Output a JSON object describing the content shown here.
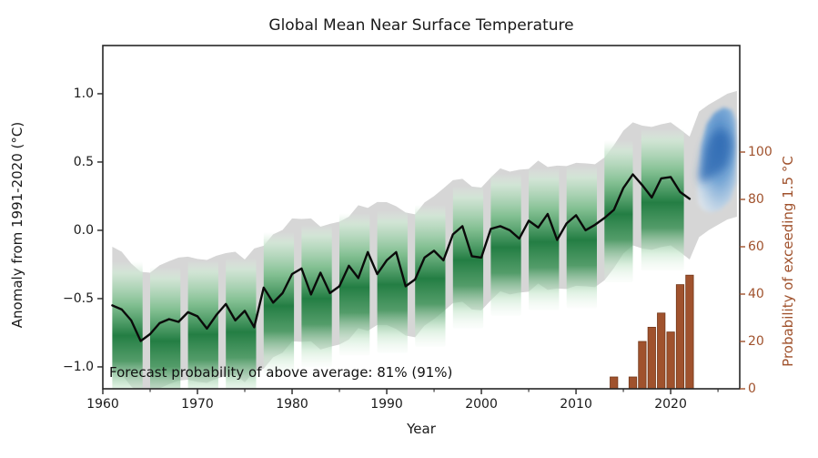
{
  "title": "Global Mean Near Surface Temperature",
  "annotation": "Forecast probability of above average: 81% (91%)",
  "axes": {
    "x": {
      "label": "Year",
      "ticks": [
        1960,
        1970,
        1980,
        1990,
        2000,
        2010,
        2020
      ],
      "tick_labels": [
        "1960",
        "1970",
        "1980",
        "1990",
        "2000",
        "2010",
        "2020"
      ],
      "minor_ticks": [
        1965,
        1975,
        1985,
        1995,
        2005,
        2015,
        2025
      ],
      "range": [
        1960,
        2027.3
      ],
      "grid": false
    },
    "y_left": {
      "label": "Anomaly from 1991-2020 (°C)",
      "ticks": [
        1.0,
        0.5,
        0.0,
        -0.5,
        -1.0
      ],
      "tick_labels": [
        "1.0",
        "0.5",
        "0.0",
        "−0.5",
        "−1.0"
      ],
      "range": [
        -1.16,
        1.353
      ],
      "color": "#1a1a1a"
    },
    "y_right": {
      "label": "Probability of exceeding 1.5 °C",
      "ticks": [
        0,
        20,
        40,
        60,
        80,
        100
      ],
      "tick_labels": [
        "0",
        "20",
        "40",
        "60",
        "80",
        "100"
      ],
      "range": [
        0,
        145
      ],
      "color": "#a0522d"
    }
  },
  "colors": {
    "observed_line": "#0a0a0a",
    "uncertainty_gray": "#d6d6d6",
    "hindcast_green_dark": "#1e7b3f",
    "hindcast_green_light": "#d9eedd",
    "forecast_blue_dark": "#2f6cb3",
    "forecast_blue_light": "#dfecf7",
    "bars_sienna": "#a0522d",
    "frame": "#262626"
  },
  "chart_data": {
    "type": "line",
    "title": "Global Mean Near Surface Temperature",
    "xlabel": "Year",
    "ylabel_left": "Anomaly from 1991-2020 (°C)",
    "ylabel_right": "Probability of exceeding 1.5 °C",
    "legend_position": "none",
    "series": [
      {
        "name": "observed annual global mean temperature anomaly",
        "axis": "left",
        "color": "#0a0a0a",
        "x": [
          1961,
          1962,
          1963,
          1964,
          1965,
          1966,
          1967,
          1968,
          1969,
          1970,
          1971,
          1972,
          1973,
          1974,
          1975,
          1976,
          1977,
          1978,
          1979,
          1980,
          1981,
          1982,
          1983,
          1984,
          1985,
          1986,
          1987,
          1988,
          1989,
          1990,
          1991,
          1992,
          1993,
          1994,
          1995,
          1996,
          1997,
          1998,
          1999,
          2000,
          2001,
          2002,
          2003,
          2004,
          2005,
          2006,
          2007,
          2008,
          2009,
          2010,
          2011,
          2012,
          2013,
          2014,
          2015,
          2016,
          2017,
          2018,
          2019,
          2020,
          2021,
          2022
        ],
        "y": [
          -0.55,
          -0.58,
          -0.66,
          -0.81,
          -0.76,
          -0.68,
          -0.65,
          -0.67,
          -0.6,
          -0.63,
          -0.72,
          -0.62,
          -0.54,
          -0.66,
          -0.59,
          -0.71,
          -0.42,
          -0.53,
          -0.46,
          -0.32,
          -0.28,
          -0.47,
          -0.31,
          -0.46,
          -0.41,
          -0.26,
          -0.35,
          -0.16,
          -0.32,
          -0.22,
          -0.16,
          -0.41,
          -0.36,
          -0.2,
          -0.15,
          -0.22,
          -0.03,
          0.03,
          -0.19,
          -0.2,
          0.01,
          0.03,
          0.0,
          -0.06,
          0.07,
          0.02,
          0.12,
          -0.07,
          0.05,
          0.11,
          0.0,
          0.04,
          0.09,
          0.15,
          0.31,
          0.41,
          0.33,
          0.24,
          0.38,
          0.39,
          0.28,
          0.23
        ]
      },
      {
        "name": "probability of exceeding 1.5 °C (bars)",
        "type": "bar",
        "axis": "right",
        "color": "#a0522d",
        "x": [
          2014,
          2016,
          2017,
          2018,
          2019,
          2020,
          2021,
          2022
        ],
        "y": [
          5,
          5,
          20,
          26,
          32,
          24,
          44,
          48
        ]
      }
    ],
    "uncertainty_band": {
      "name": "observation/hindcast uncertainty envelope",
      "color": "#d6d6d6",
      "halfwidth_upper": 0.44,
      "halfwidth_lower": 0.46
    },
    "hindcast_bands": {
      "name": "hindcast ensemble density (green shading)",
      "color_dark": "#1e7b3f",
      "color_light": "#d9eedd",
      "halfwidth_upper": 0.42,
      "halfwidth_lower": 0.62,
      "ranges": [
        [
          1961,
          1964.2
        ],
        [
          1965,
          1968.2
        ],
        [
          1969,
          1972.2
        ],
        [
          1973,
          1976.2
        ],
        [
          1977,
          1980.2
        ],
        [
          1981,
          1984.2
        ],
        [
          1985,
          1988.2
        ],
        [
          1989,
          1992.2
        ],
        [
          1993,
          1996.2
        ],
        [
          1997,
          2000.2
        ],
        [
          2001,
          2004.2
        ],
        [
          2005,
          2008.2
        ],
        [
          2009,
          2012.2
        ],
        [
          2013,
          2016.0
        ],
        [
          2016.9,
          2021.4
        ]
      ]
    },
    "forecast": {
      "name": "2023-2027 forecast ensemble density (blue shading)",
      "x": [
        2023,
        2024,
        2025,
        2026,
        2027
      ],
      "mean": [
        0.45,
        0.5,
        0.54,
        0.58,
        0.6
      ],
      "halfwidth_upper": 0.42,
      "halfwidth_lower": 0.5,
      "color_dark": "#2f6cb3",
      "color_light": "#dfecf7",
      "blob_outer": [
        [
          2022.8,
          0.3
        ],
        [
          2023.2,
          0.62
        ],
        [
          2023.8,
          0.78
        ],
        [
          2024.6,
          0.86
        ],
        [
          2025.6,
          0.9
        ],
        [
          2026.5,
          0.88
        ],
        [
          2026.9,
          0.8
        ],
        [
          2026.9,
          0.35
        ],
        [
          2026.3,
          0.22
        ],
        [
          2025.2,
          0.15
        ],
        [
          2024.2,
          0.13
        ],
        [
          2023.4,
          0.15
        ],
        [
          2022.9,
          0.2
        ]
      ],
      "blob_inner": [
        [
          2023.0,
          0.4
        ],
        [
          2023.6,
          0.6
        ],
        [
          2024.3,
          0.7
        ],
        [
          2025.2,
          0.74
        ],
        [
          2026.1,
          0.72
        ],
        [
          2026.5,
          0.62
        ],
        [
          2026.0,
          0.48
        ],
        [
          2025.0,
          0.42
        ],
        [
          2024.0,
          0.38
        ],
        [
          2023.3,
          0.34
        ]
      ]
    }
  }
}
